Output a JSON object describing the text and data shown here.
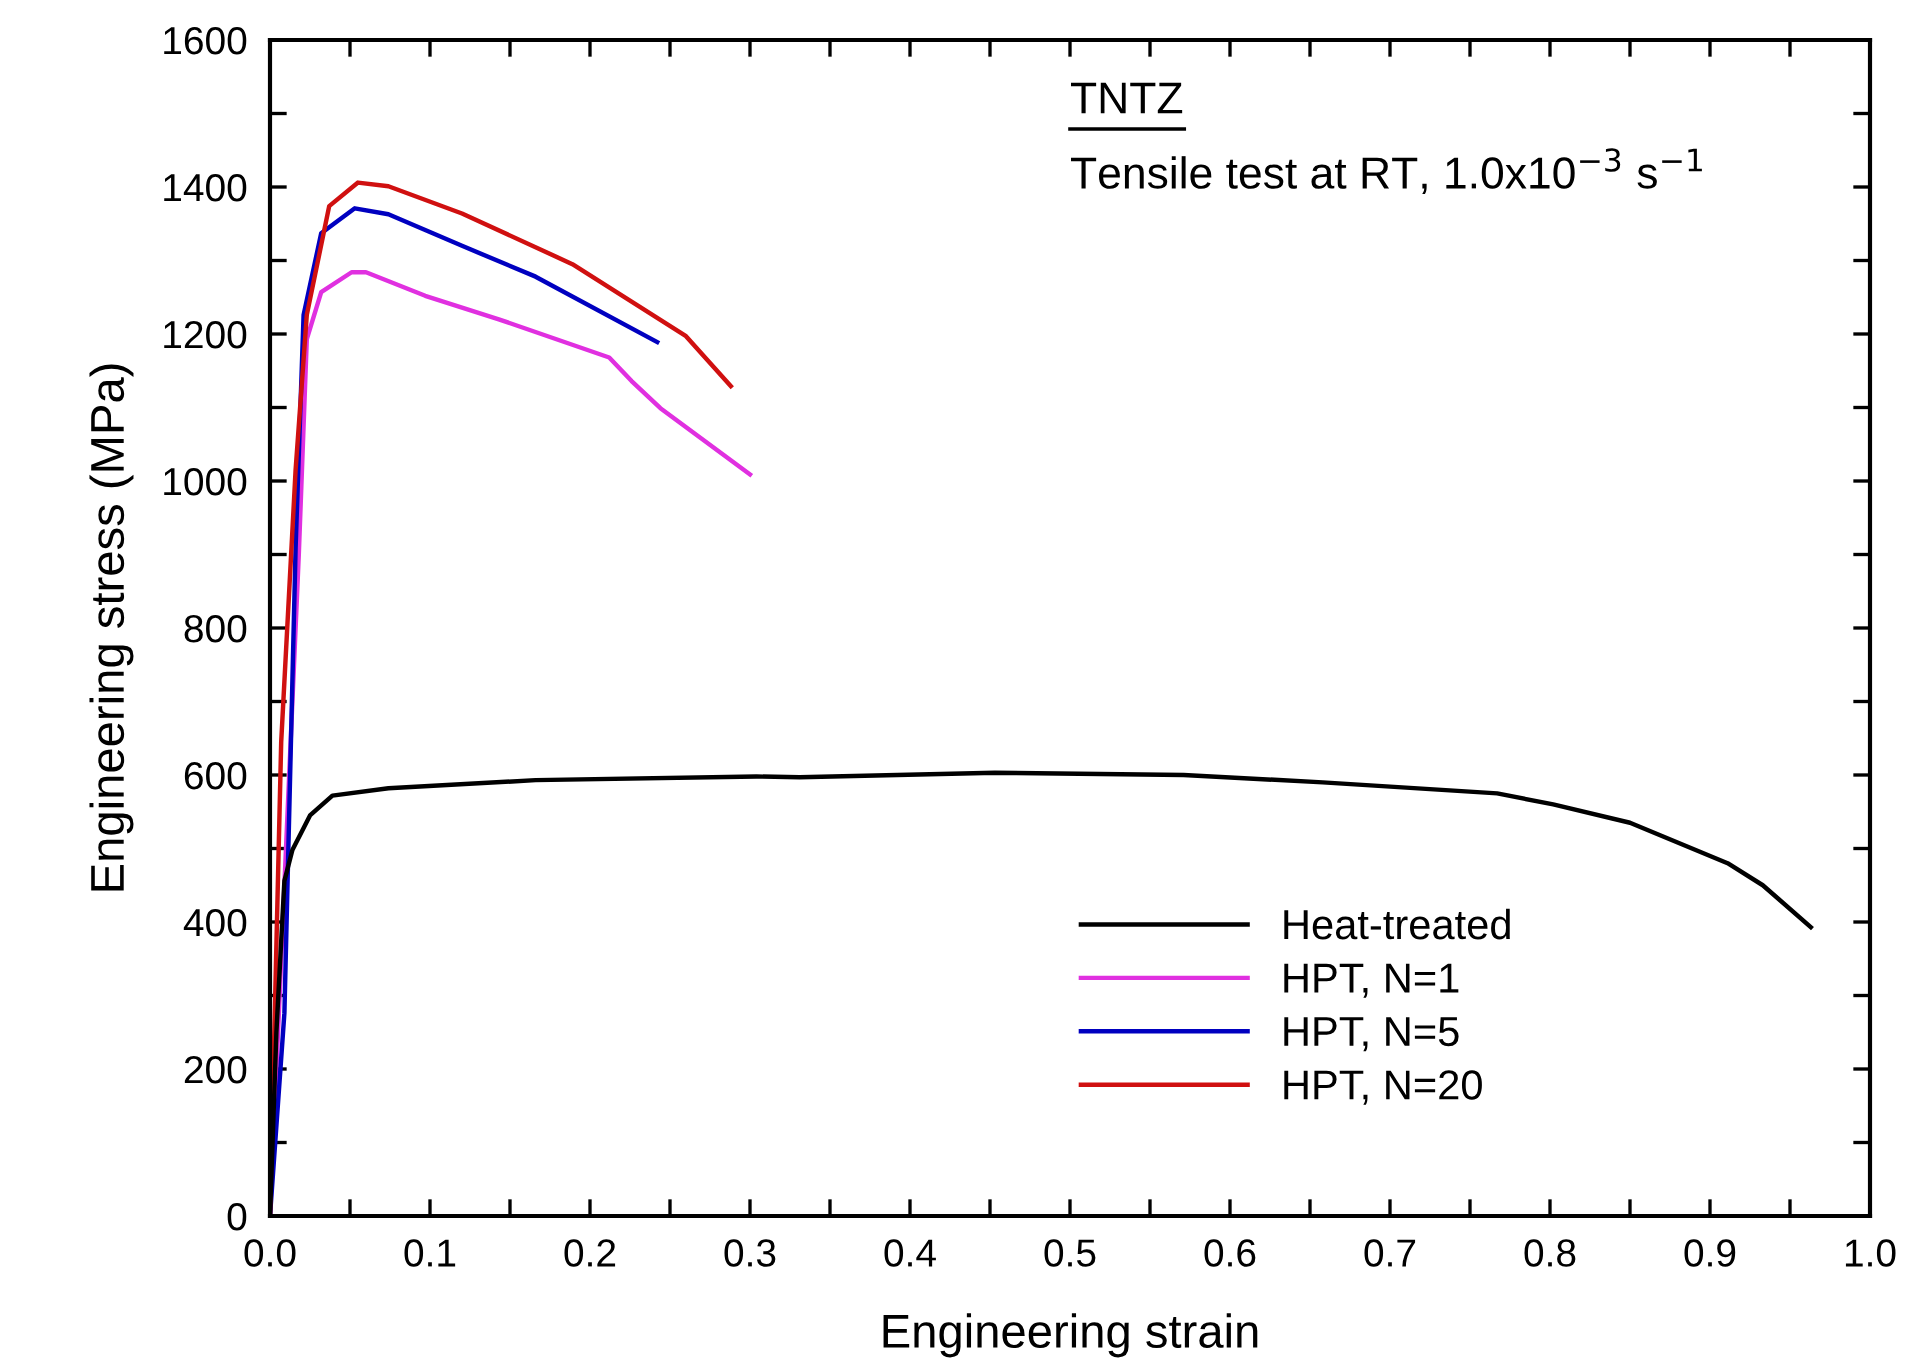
{
  "chart_data": {
    "type": "line",
    "xlabel": "Engineering strain",
    "ylabel": "Engineering stress (MPa)",
    "annotations": [
      "TNTZ",
      "Tensile test at RT, 1.0x10$^{−3}$ s$^{−1}$"
    ],
    "xlim": [
      0,
      1.0
    ],
    "ylim": [
      0,
      1600
    ],
    "xticks": [
      {
        "value": 0,
        "label": "0.0"
      },
      {
        "value": 0.05,
        "label": null
      },
      0.1,
      {
        "value": 0.15,
        "label": null
      },
      0.2,
      {
        "value": 0.25,
        "label": null
      },
      0.3,
      {
        "value": 0.35,
        "label": null
      },
      0.4,
      {
        "value": 0.45,
        "label": null
      },
      0.5,
      {
        "value": 0.55,
        "label": null
      },
      0.6,
      {
        "value": 0.65,
        "label": null
      },
      0.7,
      {
        "value": 0.75,
        "label": null
      },
      0.8,
      {
        "value": 0.85,
        "label": null
      },
      0.9,
      {
        "value": 0.95,
        "label": null
      },
      {
        "value": 1.0,
        "label": "1.0"
      }
    ],
    "yticks": [
      0,
      {
        "value": 100,
        "label": null
      },
      200,
      {
        "value": 300,
        "label": null
      },
      400,
      {
        "value": 500,
        "label": null
      },
      600,
      {
        "value": 700,
        "label": null
      },
      800,
      {
        "value": 900,
        "label": null
      },
      1000,
      {
        "value": 1100,
        "label": null
      },
      1200,
      {
        "value": 1300,
        "label": null
      },
      1400,
      {
        "value": 1500,
        "label": null
      },
      1600
    ],
    "grid": false,
    "legend": "bottom right",
    "marker": "none",
    "line_style": "solid",
    "series": [
      {
        "name": "Heat-treated",
        "color": "#000000",
        "x": [
          0,
          0.004,
          0.009,
          0.014,
          0.025,
          0.039,
          0.074,
          0.166,
          0.304,
          0.331,
          0.453,
          0.571,
          0.658,
          0.767,
          0.802,
          0.85,
          0.911,
          0.933,
          0.963
        ],
        "values": [
          0,
          250,
          456,
          498,
          545,
          572,
          582,
          593,
          598,
          597,
          603,
          600,
          590,
          575,
          560,
          535,
          480,
          450,
          393
        ]
      },
      {
        "name": "HPT, N=1",
        "color": "#e030e0",
        "x": [
          0,
          0.01,
          0.018,
          0.023,
          0.032,
          0.051,
          0.06,
          0.097,
          0.143,
          0.212,
          0.226,
          0.244,
          0.3
        ],
        "values": [
          0,
          500,
          900,
          1193,
          1257,
          1284,
          1284,
          1252,
          1220,
          1168,
          1136,
          1099,
          1009
        ]
      },
      {
        "name": "HPT, N=5",
        "color": "#0000c0",
        "x": [
          0,
          0.009,
          0.016,
          0.021,
          0.032,
          0.053,
          0.074,
          0.12,
          0.166,
          0.242
        ],
        "values": [
          0,
          276,
          909,
          1226,
          1337,
          1371,
          1363,
          1320,
          1278,
          1189
        ]
      },
      {
        "name": "HPT, N=20",
        "color": "#d01010",
        "x": [
          0,
          0.007,
          0.016,
          0.023,
          0.037,
          0.055,
          0.074,
          0.12,
          0.189,
          0.26,
          0.288
        ],
        "values": [
          0,
          645,
          1015,
          1226,
          1374,
          1406,
          1401,
          1364,
          1295,
          1197,
          1129
        ]
      }
    ]
  }
}
